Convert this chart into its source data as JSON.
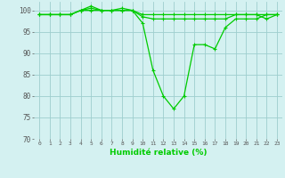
{
  "x": [
    0,
    1,
    2,
    3,
    4,
    5,
    6,
    7,
    8,
    9,
    10,
    11,
    12,
    13,
    14,
    15,
    16,
    17,
    18,
    19,
    20,
    21,
    22,
    23
  ],
  "line1": [
    99,
    99,
    99,
    99,
    100,
    101,
    100,
    100,
    100,
    100,
    97,
    86,
    80,
    77,
    80,
    92,
    92,
    91,
    96,
    98,
    98,
    98,
    99,
    99
  ],
  "line2": [
    99,
    99,
    99,
    99,
    100,
    100.5,
    100,
    100,
    100.5,
    100,
    99,
    99,
    99,
    99,
    99,
    99,
    99,
    99,
    99,
    99,
    99,
    99,
    99,
    99
  ],
  "line3": [
    99,
    99,
    99,
    99,
    100,
    100,
    100,
    100,
    100,
    100,
    98.5,
    98,
    98,
    98,
    98,
    98,
    98,
    98,
    98,
    99,
    99,
    99,
    98,
    99
  ],
  "xlabel": "Humidité relative (%)",
  "xlim_min": -0.5,
  "xlim_max": 23.5,
  "ylim_min": 70,
  "ylim_max": 102,
  "yticks": [
    70,
    75,
    80,
    85,
    90,
    95,
    100
  ],
  "xticks": [
    0,
    1,
    2,
    3,
    4,
    5,
    6,
    7,
    8,
    9,
    10,
    11,
    12,
    13,
    14,
    15,
    16,
    17,
    18,
    19,
    20,
    21,
    22,
    23
  ],
  "line_color": "#00cc00",
  "bg_color": "#d4f1f1",
  "grid_color": "#9ecece",
  "marker": "+"
}
